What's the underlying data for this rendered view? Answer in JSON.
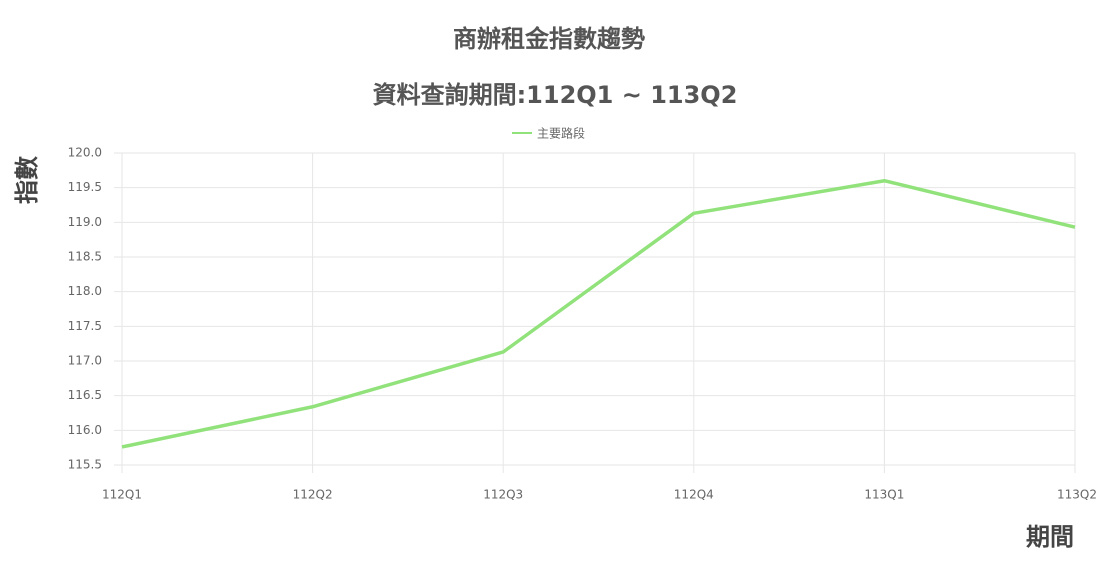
{
  "chart_data": {
    "type": "line",
    "title": "商辦租金指數趨勢",
    "subtitle": "資料查詢期間:112Q1 ~ 113Q2",
    "y_label": "指數",
    "x_label": "期間",
    "categories": [
      "112Q1",
      "112Q2",
      "112Q3",
      "112Q4",
      "113Q1",
      "113Q2"
    ],
    "series": [
      {
        "name": "主要路段",
        "color": "#92e27c",
        "values": [
          115.76,
          116.34,
          117.13,
          119.13,
          119.6,
          118.93
        ]
      }
    ],
    "ylim": [
      115.5,
      120
    ],
    "yticks": [
      {
        "value": 115.5,
        "label": "115.5"
      },
      {
        "value": 116,
        "label": "116.0"
      },
      {
        "value": 116.5,
        "label": "116.5"
      },
      {
        "value": 117,
        "label": "117.0"
      },
      {
        "value": 117.5,
        "label": "117.5"
      },
      {
        "value": 118,
        "label": "118.0"
      },
      {
        "value": 118.5,
        "label": "118.5"
      },
      {
        "value": 119,
        "label": "119.0"
      },
      {
        "value": 119.5,
        "label": "119.5"
      },
      {
        "value": 120,
        "label": "120.0"
      }
    ],
    "grid": true
  }
}
